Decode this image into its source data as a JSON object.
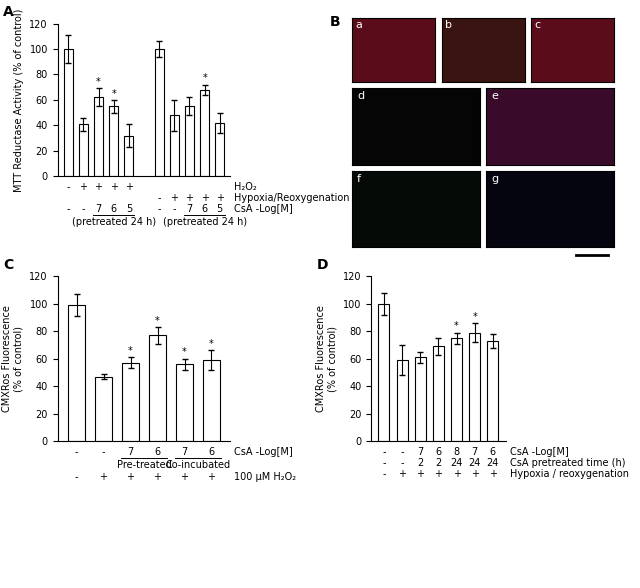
{
  "chart_data": [
    {
      "type": "bar",
      "title": "A",
      "y_label": "MTT Reductase Activity (% of control)",
      "categories": [
        null,
        null,
        null,
        null,
        null,
        null,
        null,
        null,
        null,
        null,
        null
      ],
      "values": [
        100,
        41,
        62,
        55,
        32,
        null,
        100,
        48,
        55,
        68,
        42
      ],
      "errors": [
        11,
        5,
        7,
        5,
        9,
        null,
        6,
        12,
        7,
        4,
        8
      ],
      "significance": [
        null,
        null,
        "*",
        "*",
        null,
        null,
        null,
        null,
        null,
        "*",
        null
      ],
      "color": "#ffffff",
      "grid": false,
      "ylim": [
        0,
        120
      ],
      "yticks": [
        0,
        20,
        40,
        60,
        80,
        100,
        120
      ],
      "rows": [
        {
          "label": "H₂O₂",
          "marks": [
            "-",
            "+",
            "+",
            "+",
            "+",
            null,
            null,
            null,
            null,
            null,
            null
          ]
        },
        {
          "label": "Hypoxia/Reoxygenation",
          "marks": [
            null,
            null,
            null,
            null,
            null,
            null,
            "-",
            "+",
            "+",
            "+",
            "+"
          ]
        },
        {
          "label": "CsA -Log[M]",
          "marks": [
            "-",
            "-",
            "7",
            "6",
            "5",
            null,
            "-",
            "-",
            "7",
            "6",
            "5"
          ]
        },
        {
          "spans": [
            {
              "label": "(pretreated 24 h)",
              "first": 2,
              "last": 4
            },
            {
              "label": "(pretreated 24 h)",
              "first": 8,
              "last": 10
            }
          ]
        }
      ]
    },
    {
      "type": "bar",
      "title": "C",
      "y_label": "CMXRos Fluorescence\n(% of control)",
      "categories": [
        null,
        null,
        null,
        null,
        null,
        null
      ],
      "values": [
        99,
        47,
        57,
        77,
        56,
        59
      ],
      "errors": [
        8,
        2,
        4,
        6,
        4,
        7
      ],
      "significance": [
        null,
        null,
        "*",
        "*",
        "*",
        "*"
      ],
      "color": "#ffffff",
      "grid": false,
      "ylim": [
        0,
        120
      ],
      "yticks": [
        0,
        20,
        40,
        60,
        80,
        100,
        120
      ],
      "rows": [
        {
          "label": "CsA -Log[M]",
          "marks": [
            "-",
            "-",
            "7",
            "6",
            "7",
            "6"
          ]
        },
        {
          "spans": [
            {
              "label": "Pre-treated",
              "first": 2,
              "last": 3
            },
            {
              "label": "Co-incubated",
              "first": 4,
              "last": 5
            }
          ]
        },
        {
          "label": "100 µM H₂O₂",
          "marks": [
            "-",
            "+",
            "+",
            "+",
            "+",
            "+"
          ]
        }
      ]
    },
    {
      "type": "bar",
      "title": "D",
      "y_label": "CMXRos Fluorescence\n(% of control)",
      "categories": [
        null,
        null,
        null,
        null,
        null,
        null,
        null
      ],
      "values": [
        100,
        59,
        61,
        69,
        75,
        79,
        73
      ],
      "errors": [
        8,
        11,
        4,
        6,
        4,
        7,
        5
      ],
      "significance": [
        null,
        null,
        null,
        null,
        "*",
        "*",
        null
      ],
      "color": "#ffffff",
      "grid": false,
      "ylim": [
        0,
        120
      ],
      "yticks": [
        0,
        20,
        40,
        60,
        80,
        100,
        120
      ],
      "rows": [
        {
          "label": "CsA -Log[M]",
          "marks": [
            "-",
            "-",
            "7",
            "6",
            "8",
            "7",
            "6"
          ]
        },
        {
          "label": "CsA pretreated time (h)",
          "marks": [
            "-",
            "-",
            "2",
            "2",
            "24",
            "24",
            "24"
          ]
        },
        {
          "label": "Hypoxia / reoxygenation",
          "marks": [
            "-",
            "+",
            "+",
            "+",
            "+",
            "+",
            "+"
          ]
        }
      ]
    }
  ],
  "images": {
    "title": "B",
    "labels": [
      "a",
      "b",
      "c",
      "d",
      "e",
      "f",
      "g"
    ]
  }
}
